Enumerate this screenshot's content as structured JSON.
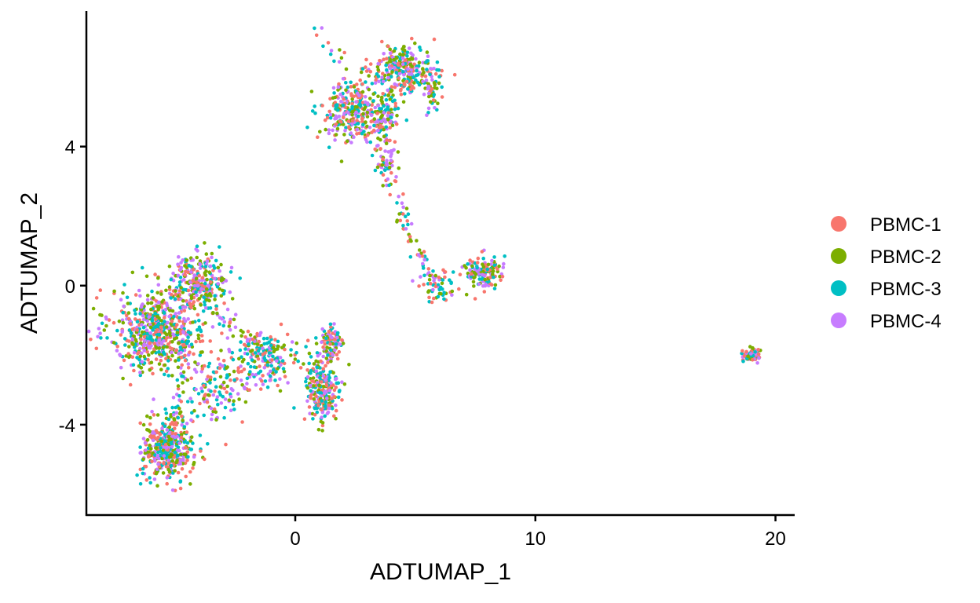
{
  "chart_data": {
    "type": "scatter",
    "title": "",
    "xlabel": "ADTUMAP_1",
    "ylabel": "ADTUMAP_2",
    "xlim": [
      -8.7,
      20.8
    ],
    "ylim": [
      -6.6,
      7.9
    ],
    "xticks": [
      0,
      10,
      20
    ],
    "xtick_labels": [
      "0",
      "10",
      "20"
    ],
    "yticks": [
      -4,
      0,
      4
    ],
    "ytick_labels": [
      "-4",
      "0",
      "4"
    ],
    "grid": false,
    "legend_position": "right",
    "series": [
      {
        "name": "PBMC-1",
        "color": "#F8766D"
      },
      {
        "name": "PBMC-2",
        "color": "#7CAE00"
      },
      {
        "name": "PBMC-3",
        "color": "#00BFC4"
      },
      {
        "name": "PBMC-4",
        "color": "#C77CFF"
      }
    ],
    "clusters": [
      {
        "cx": -5.7,
        "cy": -1.3,
        "sx": 1.25,
        "sy": 0.75,
        "n": 620
      },
      {
        "cx": -4.0,
        "cy": 0.1,
        "sx": 0.75,
        "sy": 0.5,
        "n": 260
      },
      {
        "cx": -5.3,
        "cy": -4.7,
        "sx": 0.65,
        "sy": 0.55,
        "n": 420
      },
      {
        "cx": -3.3,
        "cy": -3.1,
        "sx": 0.9,
        "sy": 0.6,
        "n": 120
      },
      {
        "cx": -1.2,
        "cy": -2.1,
        "sx": 0.9,
        "sy": 0.45,
        "n": 190
      },
      {
        "cx": 1.1,
        "cy": -3.0,
        "sx": 0.45,
        "sy": 0.65,
        "n": 240
      },
      {
        "cx": 1.5,
        "cy": -1.7,
        "sx": 0.35,
        "sy": 0.35,
        "n": 90
      },
      {
        "cx": 2.2,
        "cy": 5.0,
        "sx": 0.7,
        "sy": 0.55,
        "n": 250
      },
      {
        "cx": 4.5,
        "cy": 6.2,
        "sx": 0.85,
        "sy": 0.4,
        "n": 280
      },
      {
        "cx": 3.7,
        "cy": 4.9,
        "sx": 0.45,
        "sy": 0.5,
        "n": 140
      },
      {
        "cx": 3.7,
        "cy": 3.6,
        "sx": 0.3,
        "sy": 0.4,
        "n": 50
      },
      {
        "cx": 5.7,
        "cy": 5.6,
        "sx": 0.2,
        "sy": 0.45,
        "n": 40
      },
      {
        "cx": 7.8,
        "cy": 0.4,
        "sx": 0.5,
        "sy": 0.28,
        "n": 130
      },
      {
        "cx": 6.0,
        "cy": 0.0,
        "sx": 0.5,
        "sy": 0.35,
        "n": 60
      },
      {
        "cx": 19.0,
        "cy": -2.0,
        "sx": 0.22,
        "sy": 0.12,
        "n": 80
      }
    ],
    "filaments": [
      {
        "x0": 4.0,
        "y0": 3.0,
        "x1": 5.5,
        "y1": 0.2,
        "n": 50
      },
      {
        "x0": 1.0,
        "y0": 7.3,
        "x1": 1.8,
        "y1": 6.5,
        "n": 12
      },
      {
        "x0": -3.5,
        "y0": -0.8,
        "x1": -1.5,
        "y1": -1.8,
        "n": 40
      },
      {
        "x0": -4.5,
        "y0": -2.3,
        "x1": -5.0,
        "y1": -3.9,
        "n": 25
      }
    ]
  }
}
